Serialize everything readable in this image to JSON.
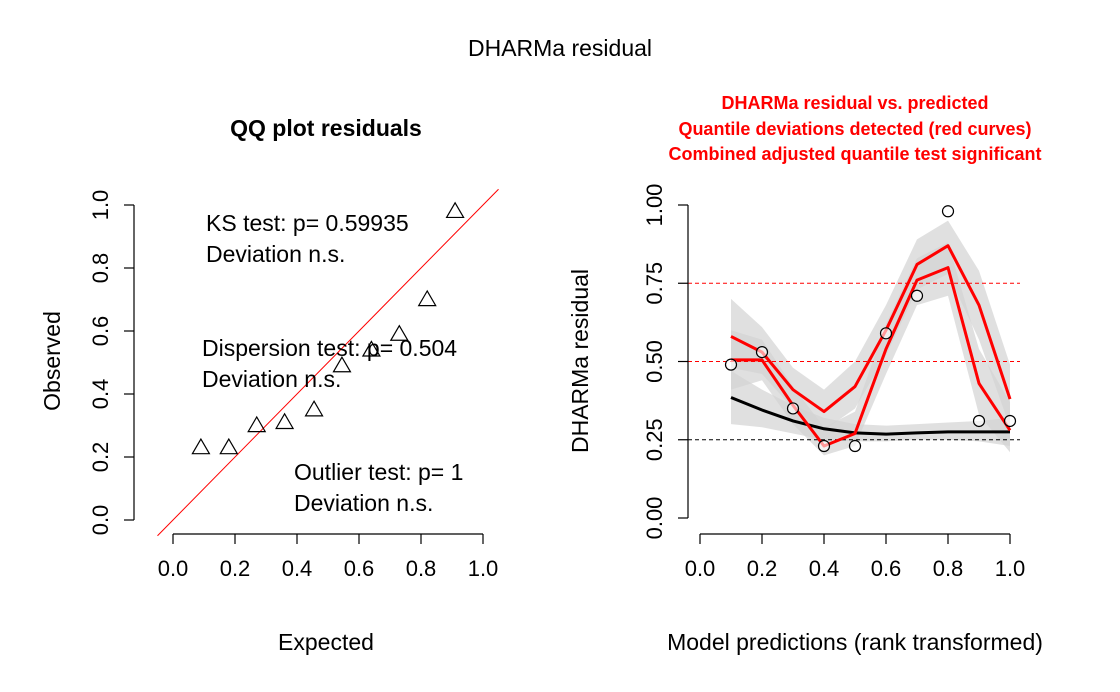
{
  "figure": {
    "title": "DHARMa residual"
  },
  "colors": {
    "red": "#ff0000",
    "black": "#000000",
    "band": "#d3d3d3",
    "band_dark": "#bdbdbd"
  },
  "chart_data": [
    {
      "id": "qq",
      "type": "scatter",
      "title": "QQ plot residuals",
      "xlabel": "Expected",
      "ylabel": "Observed",
      "xlim": [
        0,
        1
      ],
      "ylim": [
        0,
        1
      ],
      "xticks": [
        "0.0",
        "0.2",
        "0.4",
        "0.6",
        "0.8",
        "1.0"
      ],
      "yticks": [
        "0.0",
        "0.2",
        "0.4",
        "0.6",
        "0.8",
        "1.0"
      ],
      "marker": "triangle",
      "points": {
        "x": [
          0.09,
          0.18,
          0.27,
          0.36,
          0.455,
          0.545,
          0.64,
          0.73,
          0.82,
          0.91
        ],
        "y": [
          0.23,
          0.23,
          0.3,
          0.31,
          0.35,
          0.49,
          0.54,
          0.59,
          0.7,
          0.98
        ]
      },
      "reference_line": {
        "from": [
          0,
          0
        ],
        "to": [
          1,
          1
        ],
        "color": "#ff0000"
      },
      "annotations": [
        {
          "lines": [
            "KS test: p= 0.59935",
            "Deviation  n.s."
          ]
        },
        {
          "lines": [
            "Dispersion test: p= 0.504",
            "Deviation  n.s."
          ]
        },
        {
          "lines": [
            "Outlier test: p= 1",
            "Deviation  n.s."
          ]
        }
      ]
    },
    {
      "id": "resid",
      "type": "scatter",
      "title_lines": [
        "DHARMa residual vs. predicted",
        "Quantile deviations detected (red curves)",
        "Combined adjusted quantile test significant"
      ],
      "xlabel": "Model predictions (rank transformed)",
      "ylabel": "DHARMa residual",
      "xlim": [
        0,
        1
      ],
      "ylim": [
        0,
        1
      ],
      "xticks": [
        "0.0",
        "0.2",
        "0.4",
        "0.6",
        "0.8",
        "1.0"
      ],
      "yticks": [
        "0.00",
        "0.25",
        "0.50",
        "0.75",
        "1.00"
      ],
      "points": {
        "x": [
          0.1,
          0.2,
          0.3,
          0.4,
          0.5,
          0.6,
          0.7,
          0.8,
          0.9,
          1.0
        ],
        "y": [
          0.49,
          0.53,
          0.35,
          0.23,
          0.23,
          0.59,
          0.71,
          0.98,
          0.31,
          0.31
        ]
      },
      "hlines": [
        {
          "y": 0.25,
          "color": "#000000"
        },
        {
          "y": 0.5,
          "color": "#ff0000"
        },
        {
          "y": 0.75,
          "color": "#ff0000"
        }
      ],
      "series": [
        {
          "x": [
            0.1,
            0.2,
            0.3,
            0.4,
            0.5,
            0.6,
            0.7,
            0.8,
            0.9,
            1.0
          ],
          "y": [
            0.385,
            0.345,
            0.31,
            0.285,
            0.272,
            0.268,
            0.272,
            0.275,
            0.275,
            0.275
          ],
          "color": "#000000",
          "band": [
            [
              0.3,
              0.47
            ],
            [
              0.29,
              0.41
            ],
            [
              0.27,
              0.36
            ],
            [
              0.25,
              0.32
            ],
            [
              0.245,
              0.3
            ],
            [
              0.245,
              0.295
            ],
            [
              0.25,
              0.3
            ],
            [
              0.25,
              0.305
            ],
            [
              0.245,
              0.31
            ],
            [
              0.23,
              0.32
            ]
          ]
        },
        {
          "x": [
            0.1,
            0.2,
            0.3,
            0.4,
            0.5,
            0.6,
            0.7,
            0.8,
            0.9,
            1.0
          ],
          "y": [
            0.505,
            0.505,
            0.36,
            0.23,
            0.27,
            0.54,
            0.76,
            0.8,
            0.43,
            0.28
          ],
          "color": "#ff0000",
          "band": [
            [
              0.41,
              0.6
            ],
            [
              0.44,
              0.57
            ],
            [
              0.3,
              0.42
            ],
            [
              0.2,
              0.29
            ],
            [
              0.23,
              0.34
            ],
            [
              0.46,
              0.62
            ],
            [
              0.68,
              0.83
            ],
            [
              0.71,
              0.88
            ],
            [
              0.33,
              0.54
            ],
            [
              0.21,
              0.37
            ]
          ]
        },
        {
          "x": [
            0.1,
            0.2,
            0.3,
            0.4,
            0.5,
            0.6,
            0.7,
            0.8,
            0.9,
            1.0
          ],
          "y": [
            0.58,
            0.53,
            0.41,
            0.34,
            0.42,
            0.6,
            0.81,
            0.87,
            0.68,
            0.38
          ],
          "color": "#ff0000",
          "band": [
            [
              0.48,
              0.7
            ],
            [
              0.46,
              0.61
            ],
            [
              0.35,
              0.48
            ],
            [
              0.28,
              0.41
            ],
            [
              0.35,
              0.5
            ],
            [
              0.52,
              0.68
            ],
            [
              0.73,
              0.89
            ],
            [
              0.78,
              0.95
            ],
            [
              0.57,
              0.79
            ],
            [
              0.29,
              0.49
            ]
          ]
        }
      ]
    }
  ]
}
